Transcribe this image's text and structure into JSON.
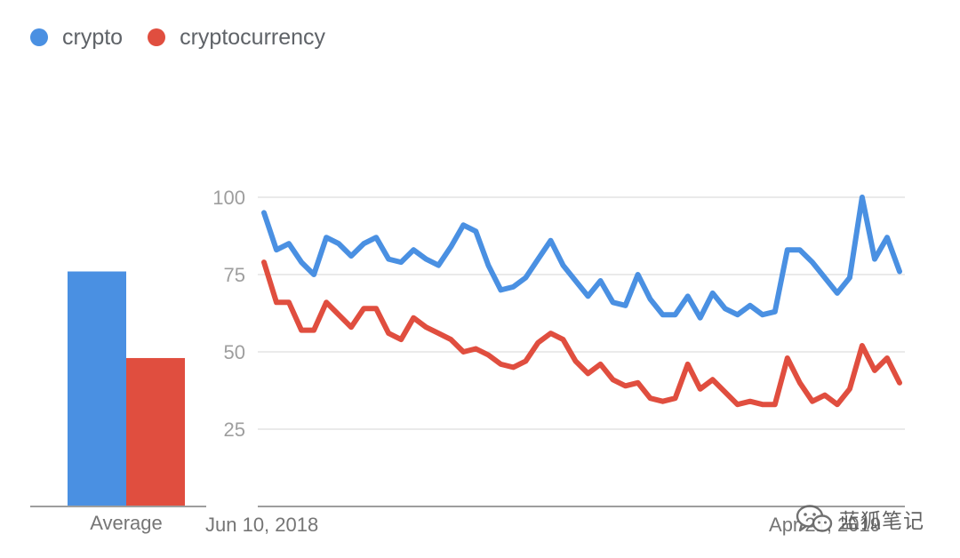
{
  "legend": {
    "items": [
      {
        "label": "crypto",
        "color": "#4a90e2"
      },
      {
        "label": "cryptocurrency",
        "color": "#e04e3f"
      }
    ]
  },
  "watermark": {
    "text": "蓝狐笔记",
    "icon": "wechat-icon"
  },
  "chart_data": [
    {
      "type": "bar",
      "categories": [
        "Average"
      ],
      "series": [
        {
          "name": "crypto",
          "color": "#4a90e2",
          "values": [
            76
          ]
        },
        {
          "name": "cryptocurrency",
          "color": "#e04e3f",
          "values": [
            48
          ]
        }
      ],
      "ylim": [
        0,
        100
      ]
    },
    {
      "type": "line",
      "x_tick_labels": [
        "Jun 10, 2018",
        "Apr 21, 2019"
      ],
      "y_ticks": [
        25,
        50,
        75,
        100
      ],
      "y_tick_labels": [
        "25",
        "50",
        "75",
        "100"
      ],
      "ylim": [
        0,
        100
      ],
      "grid": true,
      "series": [
        {
          "name": "crypto",
          "color": "#4a90e2",
          "values": [
            95,
            83,
            85,
            79,
            75,
            87,
            85,
            81,
            85,
            87,
            80,
            79,
            83,
            80,
            78,
            84,
            91,
            89,
            78,
            70,
            71,
            74,
            80,
            86,
            78,
            73,
            68,
            73,
            66,
            65,
            75,
            67,
            62,
            62,
            68,
            61,
            69,
            64,
            62,
            65,
            62,
            63,
            83,
            83,
            79,
            74,
            69,
            74,
            100,
            80,
            87,
            76
          ]
        },
        {
          "name": "cryptocurrency",
          "color": "#e04e3f",
          "values": [
            79,
            66,
            66,
            57,
            57,
            66,
            62,
            58,
            64,
            64,
            56,
            54,
            61,
            58,
            56,
            54,
            50,
            51,
            49,
            46,
            45,
            47,
            53,
            56,
            54,
            47,
            43,
            46,
            41,
            39,
            40,
            35,
            34,
            35,
            46,
            38,
            41,
            37,
            33,
            34,
            33,
            33,
            48,
            40,
            34,
            36,
            33,
            38,
            52,
            44,
            48,
            40
          ]
        }
      ]
    }
  ]
}
